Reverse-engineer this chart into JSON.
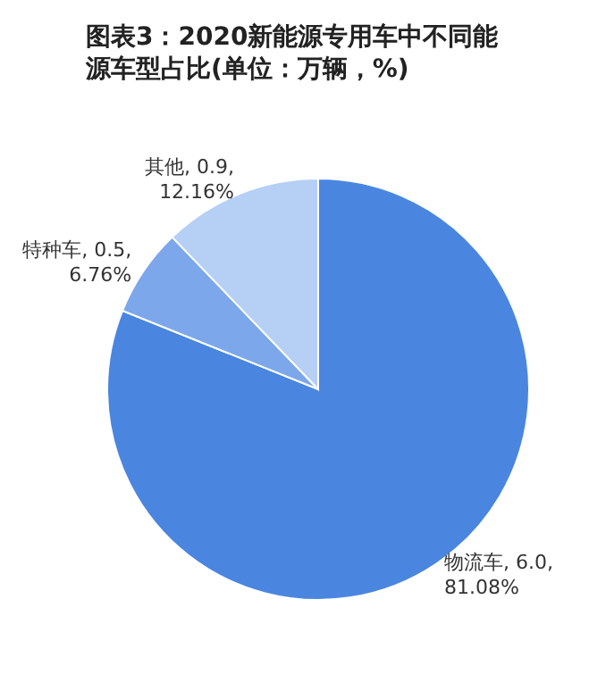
{
  "chart_data": {
    "type": "pie",
    "title": "图表3：2020新能源专用车中不同能源车型占比(单位：万辆，%)",
    "categories": [
      "物流车",
      "特种车",
      "其他"
    ],
    "values": [
      6.0,
      0.5,
      0.9
    ],
    "value_labels": [
      "6.0, 81.08%",
      "0.5, 6.76%",
      "0.9, 12.16%"
    ],
    "colors": [
      "#4a86e0",
      "#7ca7ea",
      "#b5cff5"
    ],
    "legend": false
  }
}
